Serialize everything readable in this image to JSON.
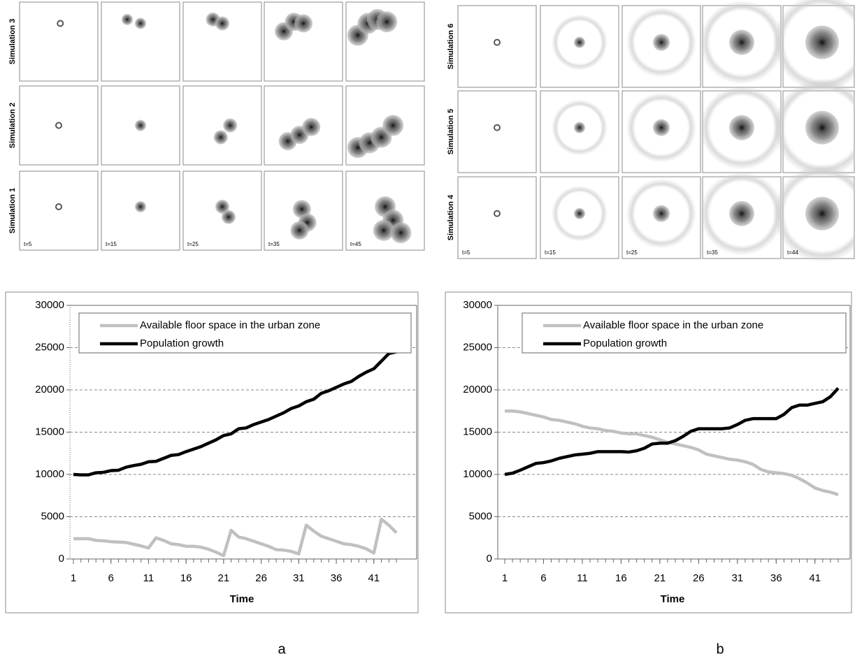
{
  "simulation_panels": [
    {
      "rows": [
        "Simulation 3",
        "Simulation 2",
        "Simulation 1"
      ],
      "times": [
        "t=5",
        "t=15",
        "t=25",
        "t=35",
        "t=45"
      ]
    },
    {
      "rows": [
        "Simulation 6",
        "Simulation 5",
        "Simulation 4"
      ],
      "times": [
        "t=5",
        "t=15",
        "t=25",
        "t=35",
        "t=44"
      ]
    }
  ],
  "chart_data": [
    {
      "type": "line",
      "x_label": "Time",
      "x": [
        1,
        2,
        3,
        4,
        5,
        6,
        7,
        8,
        9,
        10,
        11,
        12,
        13,
        14,
        15,
        16,
        17,
        18,
        19,
        20,
        21,
        22,
        23,
        24,
        25,
        26,
        27,
        28,
        29,
        30,
        31,
        32,
        33,
        34,
        35,
        36,
        37,
        38,
        39,
        40,
        41,
        42,
        43,
        44
      ],
      "xlim": [
        1,
        44
      ],
      "xticks": [
        1,
        6,
        11,
        16,
        21,
        26,
        31,
        36,
        41
      ],
      "ylim": [
        0,
        30000
      ],
      "yticks": [
        0,
        5000,
        10000,
        15000,
        20000,
        25000,
        30000
      ],
      "grid": true,
      "legend": "top",
      "series": [
        {
          "name": "Available floor space in the urban zone",
          "color": "#c0c0c0",
          "values": [
            2400,
            2400,
            2400,
            2200,
            2150,
            2050,
            2000,
            1950,
            1750,
            1550,
            1300,
            2500,
            2200,
            1800,
            1700,
            1500,
            1500,
            1400,
            1150,
            800,
            400,
            3400,
            2600,
            2400,
            2100,
            1800,
            1500,
            1100,
            1050,
            900,
            600,
            4000,
            3300,
            2700,
            2400,
            2100,
            1800,
            1700,
            1500,
            1200,
            700,
            4700,
            4000,
            3100
          ]
        },
        {
          "name": "Population growth",
          "color": "#000000",
          "values": [
            10000,
            9950,
            9950,
            10200,
            10250,
            10450,
            10500,
            10850,
            11050,
            11200,
            11500,
            11550,
            11900,
            12250,
            12350,
            12700,
            13000,
            13300,
            13700,
            14100,
            14600,
            14800,
            15400,
            15500,
            15900,
            16200,
            16500,
            16900,
            17300,
            17800,
            18100,
            18600,
            18900,
            19600,
            19900,
            20300,
            20700,
            21000,
            21600,
            22100,
            22500,
            23400,
            24300,
            24500
          ]
        }
      ]
    },
    {
      "type": "line",
      "x_label": "Time",
      "x": [
        1,
        2,
        3,
        4,
        5,
        6,
        7,
        8,
        9,
        10,
        11,
        12,
        13,
        14,
        15,
        16,
        17,
        18,
        19,
        20,
        21,
        22,
        23,
        24,
        25,
        26,
        27,
        28,
        29,
        30,
        31,
        32,
        33,
        34,
        35,
        36,
        37,
        38,
        39,
        40,
        41,
        42,
        43,
        44
      ],
      "xlim": [
        1,
        44
      ],
      "xticks": [
        1,
        6,
        11,
        16,
        21,
        26,
        31,
        36,
        41
      ],
      "ylim": [
        0,
        30000
      ],
      "yticks": [
        0,
        5000,
        10000,
        15000,
        20000,
        25000,
        30000
      ],
      "grid": true,
      "legend": "top",
      "series": [
        {
          "name": "Available floor space in the urban zone",
          "color": "#c0c0c0",
          "values": [
            17500,
            17500,
            17400,
            17200,
            17000,
            16800,
            16500,
            16400,
            16200,
            16000,
            15700,
            15500,
            15400,
            15200,
            15100,
            14900,
            14800,
            14800,
            14600,
            14400,
            14100,
            13800,
            13600,
            13400,
            13200,
            12900,
            12400,
            12200,
            12000,
            11800,
            11700,
            11500,
            11200,
            10600,
            10300,
            10200,
            10100,
            9900,
            9500,
            9000,
            8400,
            8100,
            7900,
            7600
          ]
        },
        {
          "name": "Population growth",
          "color": "#000000",
          "values": [
            10000,
            10150,
            10500,
            10900,
            11300,
            11400,
            11600,
            11900,
            12100,
            12300,
            12400,
            12500,
            12700,
            12700,
            12700,
            12700,
            12650,
            12800,
            13100,
            13600,
            13700,
            13700,
            14000,
            14500,
            15100,
            15400,
            15400,
            15400,
            15400,
            15500,
            15900,
            16400,
            16600,
            16600,
            16600,
            16600,
            17100,
            17900,
            18200,
            18200,
            18400,
            18600,
            19200,
            20200
          ]
        }
      ]
    }
  ],
  "captions": [
    "a",
    "b"
  ]
}
